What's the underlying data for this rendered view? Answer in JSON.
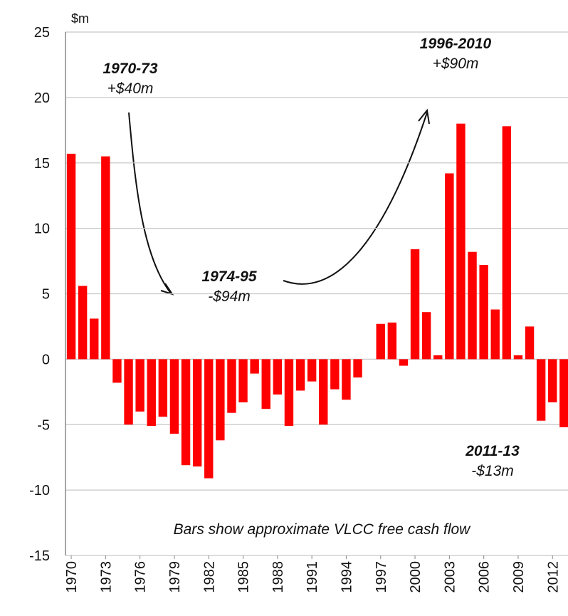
{
  "chart_data": {
    "type": "bar",
    "y_axis_label": "$m",
    "note": "Bars show approximate VLCC free cash flow",
    "categories": [
      "1970",
      null,
      null,
      "1973",
      null,
      null,
      "1976",
      null,
      null,
      "1979",
      null,
      null,
      "1982",
      null,
      null,
      "1985",
      null,
      null,
      "1988",
      null,
      null,
      "1991",
      null,
      null,
      "1994",
      null,
      null,
      "1997",
      null,
      null,
      "2000",
      null,
      null,
      "2003",
      null,
      null,
      "2006",
      null,
      null,
      "2009",
      null,
      null,
      "2012",
      null
    ],
    "values": [
      15.7,
      5.6,
      3.1,
      15.5,
      -1.8,
      -5.0,
      -4.0,
      -5.1,
      -4.4,
      -5.7,
      -8.1,
      -8.2,
      -9.1,
      -6.2,
      -4.1,
      -3.3,
      -1.1,
      -3.8,
      -2.7,
      -5.1,
      -2.4,
      -1.7,
      -5.0,
      -2.3,
      -3.1,
      -1.4,
      0,
      2.7,
      2.8,
      -0.5,
      8.4,
      3.6,
      0.3,
      14.2,
      18.0,
      8.2,
      7.2,
      3.8,
      17.8,
      0.3,
      2.5,
      -4.7,
      -3.3,
      -5.2
    ],
    "color": "#ff0000",
    "ylim": [
      -15,
      25
    ],
    "yticks": [
      -15,
      -10,
      -5,
      0,
      5,
      10,
      15,
      20,
      25
    ],
    "grid": true,
    "annotations": [
      {
        "title": "1970-73",
        "value": "+$40m"
      },
      {
        "title": "1974-95",
        "value": "-$94m"
      },
      {
        "title": "1996-2010",
        "value": "+$90m"
      },
      {
        "title": "2011-13",
        "value": "-$13m"
      }
    ]
  }
}
